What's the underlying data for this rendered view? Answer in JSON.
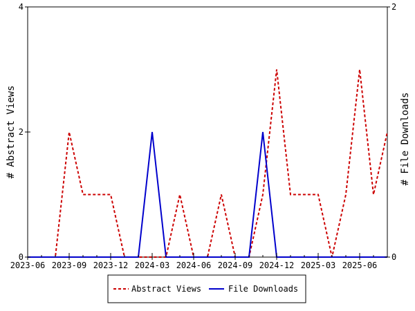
{
  "chart_data": {
    "type": "line",
    "title": "",
    "xlabel": "",
    "ylabel": "# Abstract Views",
    "y2label": "# File Downloads",
    "x": [
      "2023-06",
      "2023-07",
      "2023-08",
      "2023-09",
      "2023-10",
      "2023-11",
      "2023-12",
      "2024-01",
      "2024-02",
      "2024-03",
      "2024-04",
      "2024-05",
      "2024-06",
      "2024-07",
      "2024-08",
      "2024-09",
      "2024-10",
      "2024-11",
      "2024-12",
      "2025-01",
      "2025-02",
      "2025-03",
      "2025-04",
      "2025-05",
      "2025-06",
      "2025-07",
      "2025-08"
    ],
    "xticks": [
      "2023-06",
      "2023-09",
      "2023-12",
      "2024-03",
      "2024-06",
      "2024-09",
      "2024-12",
      "2025-03",
      "2025-06"
    ],
    "ylim": [
      0,
      4
    ],
    "yticks": [
      0,
      2,
      4
    ],
    "y2lim": [
      0,
      2
    ],
    "y2ticks": [
      0,
      2
    ],
    "grid": false,
    "legend_position": "bottom",
    "series": [
      {
        "name": "Abstract Views",
        "axis": "left",
        "color": "#cc0000",
        "style": "dashed",
        "values": [
          0,
          0,
          0,
          2,
          1,
          1,
          1,
          0,
          0,
          0,
          0,
          1,
          0,
          0,
          1,
          0,
          0,
          1,
          3,
          1,
          1,
          1,
          0,
          1,
          3,
          1,
          2
        ]
      },
      {
        "name": "File Downloads",
        "axis": "right",
        "color": "#0000cc",
        "style": "solid",
        "values": [
          0,
          0,
          0,
          0,
          0,
          0,
          0,
          0,
          0,
          1,
          0,
          0,
          0,
          0,
          0,
          0,
          0,
          1,
          0,
          0,
          0,
          0,
          0,
          0,
          0,
          0,
          0
        ]
      }
    ]
  }
}
